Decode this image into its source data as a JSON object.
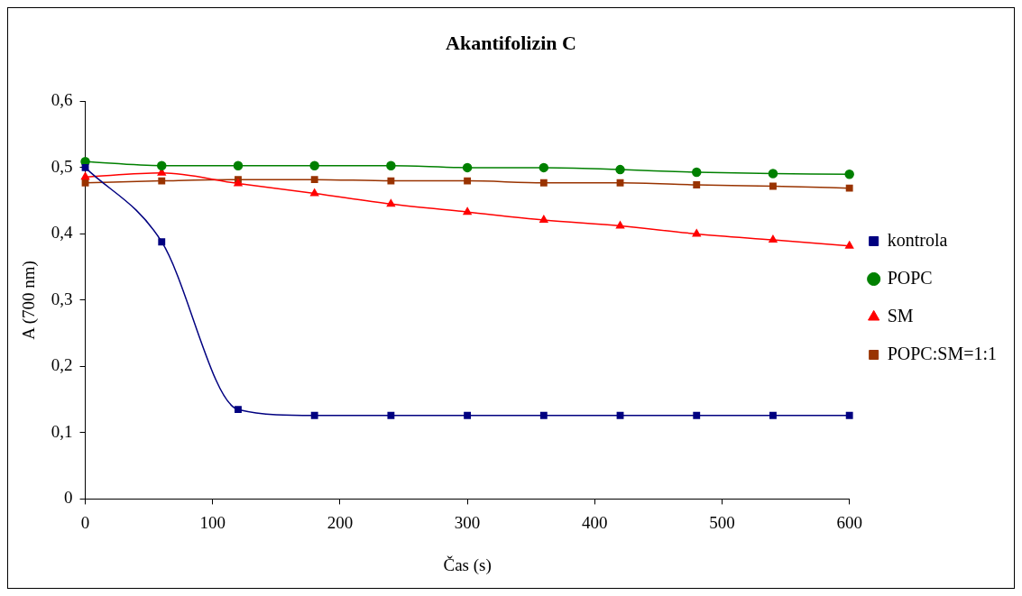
{
  "chart_data": {
    "type": "line",
    "title": "Akantifolizin C",
    "xlabel": "Čas (s)",
    "ylabel": "A (700 nm)",
    "x": [
      0,
      60,
      120,
      180,
      240,
      300,
      360,
      420,
      480,
      540,
      600
    ],
    "xlim": [
      0,
      600
    ],
    "xticks": [
      0,
      100,
      200,
      300,
      400,
      500,
      600
    ],
    "ylim": [
      0,
      0.6
    ],
    "yticks": [
      {
        "value": 0,
        "label": "0"
      },
      {
        "value": 0.1,
        "label": "0,1"
      },
      {
        "value": 0.2,
        "label": "0,2"
      },
      {
        "value": 0.3,
        "label": "0,3"
      },
      {
        "value": 0.4,
        "label": "0,4"
      },
      {
        "value": 0.5,
        "label": "0,5"
      },
      {
        "value": 0.6,
        "label": "0,6"
      }
    ],
    "grid": false,
    "legend": "right",
    "series": [
      {
        "name": "kontrola",
        "color": "#000080",
        "marker": "square",
        "values": [
          0.5,
          0.388,
          0.135,
          0.126,
          0.126,
          0.126,
          0.126,
          0.126,
          0.126,
          0.126,
          0.126
        ]
      },
      {
        "name": "POPC",
        "color": "#008000",
        "marker": "circle",
        "values": [
          0.509,
          0.503,
          0.503,
          0.503,
          0.503,
          0.5,
          0.5,
          0.497,
          0.493,
          0.491,
          0.49
        ]
      },
      {
        "name": "SM",
        "color": "#ff0000",
        "marker": "triangle",
        "values": [
          0.486,
          0.492,
          0.476,
          0.461,
          0.445,
          0.433,
          0.421,
          0.412,
          0.4,
          0.391,
          0.382
        ]
      },
      {
        "name": "POPC:SM=1:1",
        "color": "#993300",
        "marker": "square",
        "values": [
          0.477,
          0.48,
          0.482,
          0.482,
          0.48,
          0.48,
          0.477,
          0.477,
          0.474,
          0.472,
          0.469
        ]
      }
    ]
  }
}
